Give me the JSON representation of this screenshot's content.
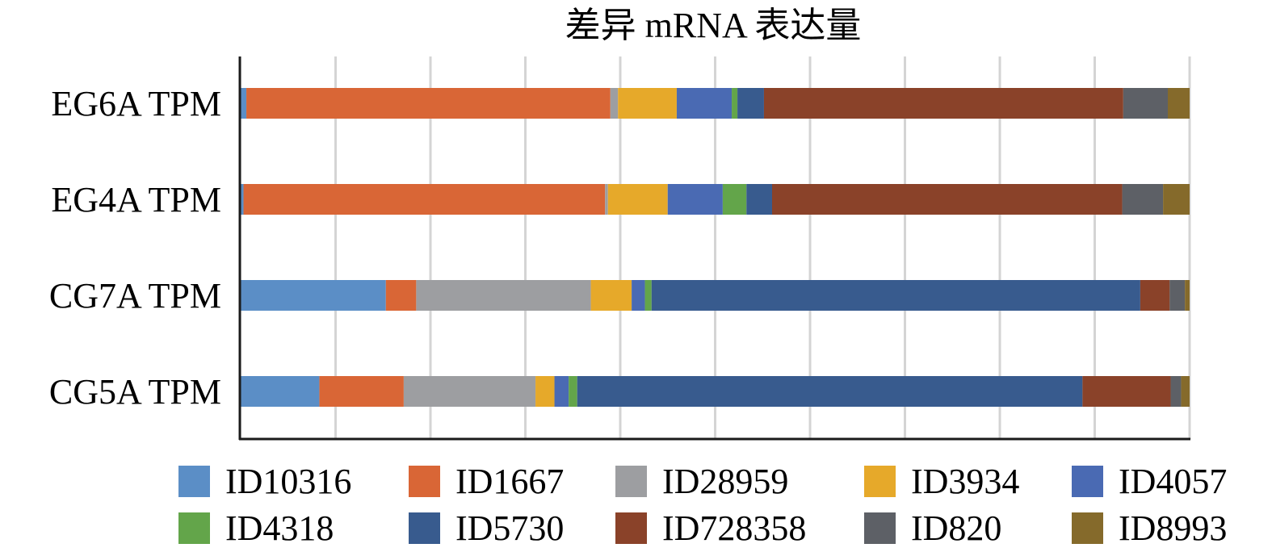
{
  "chart_data": {
    "type": "bar",
    "orientation": "horizontal",
    "stacked": "percent",
    "title": "差异 mRNA 表达量",
    "xlabel": "",
    "ylabel": "",
    "xlim": [
      0,
      100
    ],
    "x_unit": "percent",
    "grid": true,
    "gridline_count": 10,
    "legend_position": "bottom",
    "categories": [
      "EG6A TPM",
      "EG4A TPM",
      "CG7A TPM",
      "CG5A TPM"
    ],
    "series": [
      {
        "name": "ID10316",
        "color": "#5b8ec6",
        "values": [
          0.6,
          0.3,
          15.3,
          8.3
        ]
      },
      {
        "name": "ID1667",
        "color": "#d96636",
        "values": [
          38.4,
          38.1,
          3.2,
          8.9
        ]
      },
      {
        "name": "ID28959",
        "color": "#9d9ea1",
        "values": [
          0.8,
          0.3,
          18.4,
          13.9
        ]
      },
      {
        "name": "ID3934",
        "color": "#e6a92a",
        "values": [
          6.2,
          6.3,
          4.3,
          2.0
        ]
      },
      {
        "name": "ID4057",
        "color": "#4a6ab3",
        "values": [
          5.8,
          5.8,
          1.4,
          1.5
        ]
      },
      {
        "name": "ID4318",
        "color": "#63a54a",
        "values": [
          0.6,
          2.5,
          0.7,
          0.9
        ]
      },
      {
        "name": "ID5730",
        "color": "#385b8e",
        "values": [
          2.8,
          2.7,
          51.5,
          53.3
        ]
      },
      {
        "name": "ID728358",
        "color": "#8a4229",
        "values": [
          37.9,
          36.9,
          3.1,
          9.3
        ]
      },
      {
        "name": "ID820",
        "color": "#5d6066",
        "values": [
          4.7,
          4.3,
          1.6,
          1.1
        ]
      },
      {
        "name": "ID8993",
        "color": "#856a2b",
        "values": [
          2.3,
          2.8,
          0.5,
          0.9
        ]
      }
    ]
  }
}
